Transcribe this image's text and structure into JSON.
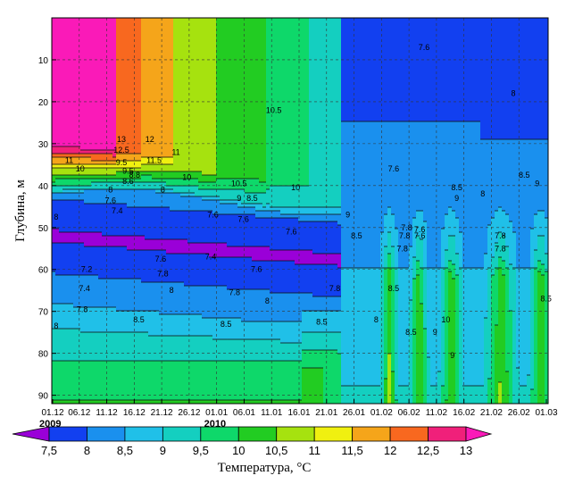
{
  "chart_data": {
    "type": "heatmap",
    "ylabel": "Глубина, м",
    "colorbar_label": "Температура, °C",
    "x_tick_labels": [
      "01.12",
      "06.12",
      "11.12",
      "16.12",
      "21.12",
      "26.12",
      "01.01",
      "06.01",
      "11.01",
      "16.01",
      "21.01",
      "26.01",
      "01.02",
      "06.02",
      "11.02",
      "16.02",
      "21.02",
      "26.02",
      "01.03"
    ],
    "year_labels": [
      {
        "after_tick": 0,
        "text": "2009"
      },
      {
        "after_tick": 6,
        "text": "2010"
      }
    ],
    "y_ticks": [
      10,
      20,
      30,
      40,
      50,
      60,
      70,
      80,
      90
    ],
    "y_tick_labels": [
      "10",
      "20",
      "30",
      "40",
      "50",
      "60",
      "70",
      "80",
      "90"
    ],
    "ylim": [
      0,
      92
    ],
    "y_inverted": true,
    "grid": true,
    "levels": [
      7.5,
      8,
      8.5,
      9,
      9.5,
      10,
      10.5,
      11,
      11.5,
      12,
      12.5,
      13
    ],
    "level_labels": [
      "7,5",
      "8",
      "8,5",
      "9",
      "9,5",
      "10",
      "10,5",
      "11",
      "11,5",
      "12",
      "12,5",
      "13"
    ],
    "level_colors": [
      "#9a00d8",
      "#1240f0",
      "#1a90ee",
      "#20c0e8",
      "#14cfc0",
      "#0ed86a",
      "#22cc22",
      "#a6e20f",
      "#f0f010",
      "#f5a51a",
      "#f8681f",
      "#f0207a",
      "#fa1ab8"
    ],
    "contour_labels": [
      {
        "text": "7.6",
        "day": 85.5,
        "depth": 7
      },
      {
        "text": "10.5",
        "day": 51,
        "depth": 22
      },
      {
        "text": "8",
        "day": 106,
        "depth": 18
      },
      {
        "text": "13",
        "day": 16,
        "depth": 29
      },
      {
        "text": "12.5",
        "day": 16,
        "depth": 31.5
      },
      {
        "text": "12",
        "day": 22.5,
        "depth": 29
      },
      {
        "text": "11",
        "day": 28.5,
        "depth": 32
      },
      {
        "text": "11.5",
        "day": 23.5,
        "depth": 34
      },
      {
        "text": "11",
        "day": 4,
        "depth": 34
      },
      {
        "text": "10",
        "day": 6.5,
        "depth": 36
      },
      {
        "text": "9.5",
        "day": 16,
        "depth": 34.5
      },
      {
        "text": "9.5",
        "day": 17.5,
        "depth": 36.5
      },
      {
        "text": "8.8",
        "day": 19,
        "depth": 37.5
      },
      {
        "text": "8.6",
        "day": 17.5,
        "depth": 39
      },
      {
        "text": "10",
        "day": 31,
        "depth": 38
      },
      {
        "text": "10.5",
        "day": 43,
        "depth": 39.5
      },
      {
        "text": "10",
        "day": 56,
        "depth": 40.5
      },
      {
        "text": "8",
        "day": 13.5,
        "depth": 41
      },
      {
        "text": "7.6",
        "day": 13.5,
        "depth": 43.5
      },
      {
        "text": "7.4",
        "day": 15,
        "depth": 46
      },
      {
        "text": "8",
        "day": 1,
        "depth": 47.5
      },
      {
        "text": "8",
        "day": 25.5,
        "depth": 41
      },
      {
        "text": "9",
        "day": 43,
        "depth": 43
      },
      {
        "text": "8.5",
        "day": 46,
        "depth": 43
      },
      {
        "text": "7.6",
        "day": 37,
        "depth": 47
      },
      {
        "text": "7.6",
        "day": 44,
        "depth": 48
      },
      {
        "text": "7.6",
        "day": 55,
        "depth": 51
      },
      {
        "text": "9",
        "day": 68,
        "depth": 47
      },
      {
        "text": "8.5",
        "day": 70,
        "depth": 52
      },
      {
        "text": "7.6",
        "day": 78.5,
        "depth": 36
      },
      {
        "text": "7.8",
        "day": 81.5,
        "depth": 50
      },
      {
        "text": "7.6",
        "day": 84.5,
        "depth": 50.5
      },
      {
        "text": "7.8",
        "day": 81,
        "depth": 52
      },
      {
        "text": "7.6",
        "day": 84.5,
        "depth": 52
      },
      {
        "text": "7.8",
        "day": 80.5,
        "depth": 55
      },
      {
        "text": "8.5",
        "day": 93,
        "depth": 40.5
      },
      {
        "text": "9",
        "day": 93,
        "depth": 43
      },
      {
        "text": "8",
        "day": 99,
        "depth": 42
      },
      {
        "text": "7.8",
        "day": 103,
        "depth": 52
      },
      {
        "text": "7.8",
        "day": 103,
        "depth": 55
      },
      {
        "text": "8.5",
        "day": 108.5,
        "depth": 37.5
      },
      {
        "text": "9",
        "day": 111.5,
        "depth": 39.5
      },
      {
        "text": "7.2",
        "day": 8,
        "depth": 60
      },
      {
        "text": "7.4",
        "day": 7.5,
        "depth": 64.5
      },
      {
        "text": "7.8",
        "day": 7,
        "depth": 69.5
      },
      {
        "text": "8",
        "day": 1,
        "depth": 73.5
      },
      {
        "text": "8.5",
        "day": 20,
        "depth": 72
      },
      {
        "text": "7.6",
        "day": 25,
        "depth": 57.5
      },
      {
        "text": "7.4",
        "day": 36.5,
        "depth": 57
      },
      {
        "text": "7.8",
        "day": 25.5,
        "depth": 61
      },
      {
        "text": "8",
        "day": 27.5,
        "depth": 65
      },
      {
        "text": "7.6",
        "day": 47,
        "depth": 60
      },
      {
        "text": "7.8",
        "day": 42,
        "depth": 65.5
      },
      {
        "text": "8",
        "day": 49.5,
        "depth": 67.5
      },
      {
        "text": "8.5",
        "day": 40,
        "depth": 73
      },
      {
        "text": "7.8",
        "day": 65,
        "depth": 64.5
      },
      {
        "text": "8.5",
        "day": 62,
        "depth": 72.5
      },
      {
        "text": "8",
        "day": 74.5,
        "depth": 72
      },
      {
        "text": "8.5",
        "day": 78.5,
        "depth": 64.5
      },
      {
        "text": "8.5",
        "day": 82.5,
        "depth": 75
      },
      {
        "text": "9",
        "day": 88,
        "depth": 75
      },
      {
        "text": "10",
        "day": 90.5,
        "depth": 72
      },
      {
        "text": "9",
        "day": 92,
        "depth": 80.5
      },
      {
        "text": "8.5",
        "day": 113.5,
        "depth": 67
      }
    ]
  }
}
